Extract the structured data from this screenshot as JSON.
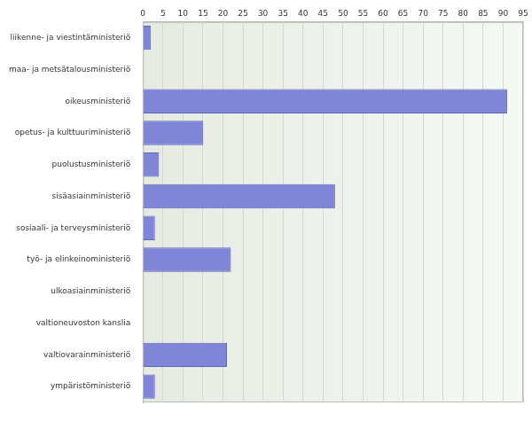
{
  "chart_data": {
    "type": "bar",
    "orientation": "horizontal",
    "categories": [
      "liikenne- ja viestintäministeriö",
      "maa- ja metsätalousministeriö",
      "oikeusministeriö",
      "opetus- ja kulttuuriministeriö",
      "puolustusministeriö",
      "sisäasiainministeriö",
      "sosiaali- ja terveysministeriö",
      "työ- ja elinkeinoministeriö",
      "ulkoasiainministeriö",
      "valtioneuvoston kanslia",
      "valtiovarainministeriö",
      "ympäristöministeriö"
    ],
    "values": [
      2,
      0,
      91,
      15,
      4,
      48,
      3,
      22,
      0,
      0,
      21,
      3
    ],
    "color": "#7f86d8",
    "xlim": [
      0,
      95
    ],
    "xticks": [
      0,
      5,
      10,
      15,
      20,
      25,
      30,
      35,
      40,
      45,
      50,
      55,
      60,
      65,
      70,
      75,
      80,
      85,
      90,
      95
    ],
    "grid": true
  }
}
